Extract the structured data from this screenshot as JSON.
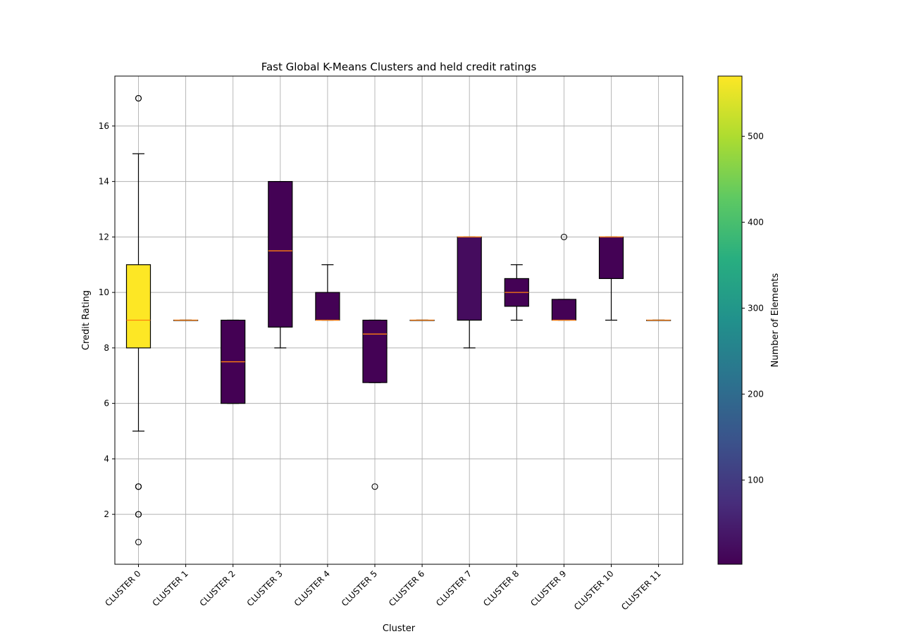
{
  "chart_data": {
    "type": "box",
    "title": "Fast Global K-Means Clusters and held credit ratings",
    "xlabel": "Cluster",
    "ylabel": "Credit Rating",
    "ylim": [
      0.2,
      17.8
    ],
    "yticks": [
      2,
      4,
      6,
      8,
      10,
      12,
      14,
      16
    ],
    "grid": true,
    "categories": [
      "CLUSTER 0",
      "CLUSTER 1",
      "CLUSTER 2",
      "CLUSTER 3",
      "CLUSTER 4",
      "CLUSTER 5",
      "CLUSTER 6",
      "CLUSTER 7",
      "CLUSTER 8",
      "CLUSTER 9",
      "CLUSTER 10",
      "CLUSTER 11"
    ],
    "boxes": [
      {
        "whislo": 5,
        "q1": 8,
        "median": 9,
        "q3": 11,
        "whishi": 15,
        "fliers": [
          17,
          17,
          3,
          3,
          3,
          2,
          2,
          1
        ],
        "count": 570
      },
      {
        "whislo": 9,
        "q1": 9,
        "median": 9,
        "q3": 9,
        "whishi": 9,
        "fliers": [],
        "count": 2
      },
      {
        "whislo": 6,
        "q1": 6,
        "median": 7.5,
        "q3": 9,
        "whishi": 9,
        "fliers": [],
        "count": 2
      },
      {
        "whislo": 8,
        "q1": 8.75,
        "median": 11.5,
        "q3": 14,
        "whishi": 14,
        "fliers": [],
        "count": 4
      },
      {
        "whislo": 9,
        "q1": 9,
        "median": 9,
        "q3": 10,
        "whishi": 11,
        "fliers": [],
        "count": 3
      },
      {
        "whislo": 6.75,
        "q1": 6.75,
        "median": 8.5,
        "q3": 9,
        "whishi": 9,
        "fliers": [
          3
        ],
        "count": 4
      },
      {
        "whislo": 9,
        "q1": 9,
        "median": 9,
        "q3": 9,
        "whishi": 9,
        "fliers": [],
        "count": 2
      },
      {
        "whislo": 8,
        "q1": 9,
        "median": 12,
        "q3": 12,
        "whishi": 12,
        "fliers": [],
        "count": 20
      },
      {
        "whislo": 9,
        "q1": 9.5,
        "median": 10,
        "q3": 10.5,
        "whishi": 11,
        "fliers": [],
        "count": 3
      },
      {
        "whislo": 9,
        "q1": 9,
        "median": 9,
        "q3": 9.75,
        "whishi": 9.75,
        "fliers": [
          12
        ],
        "count": 4
      },
      {
        "whislo": 9,
        "q1": 10.5,
        "median": 12,
        "q3": 12,
        "whishi": 12,
        "fliers": [],
        "count": 3
      },
      {
        "whislo": 9,
        "q1": 9,
        "median": 9,
        "q3": 9,
        "whishi": 9,
        "fliers": [],
        "count": 2
      }
    ],
    "colorbar": {
      "label": "Number of Elements",
      "colormap": "viridis",
      "range": [
        2,
        570
      ],
      "ticks": [
        100,
        200,
        300,
        400,
        500
      ]
    },
    "median_color": "#ff7f0e"
  }
}
